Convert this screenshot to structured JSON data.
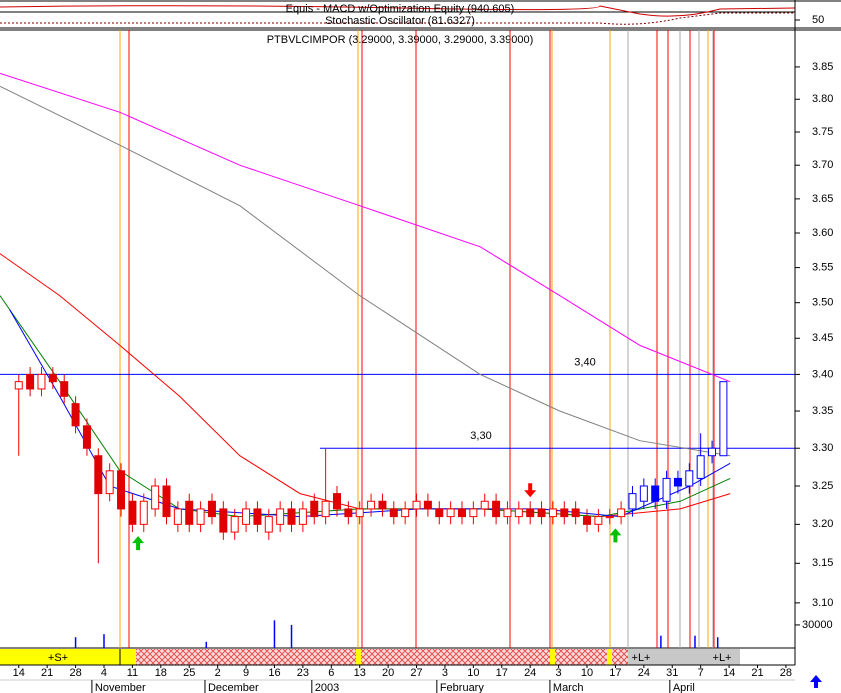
{
  "chart_data": {
    "type": "candlestick",
    "indicator": {
      "labels": [
        "Equis - MACD w/Optimization Equity (940.605)",
        "Stochastic Oscillator (81.6327)"
      ],
      "ylim": [
        0,
        140
      ],
      "yticks": [
        50
      ]
    },
    "title": "PTBVLCIMPOR (3.29000, 3.39000, 3.29000, 3.39000)",
    "log_scale": true,
    "grid": false,
    "xlim": [
      -3.3,
      136.6
    ],
    "ylim": [
      3.06,
      3.9
    ],
    "yticks": [
      {
        "value": 3.1,
        "label": "3.10"
      },
      3.15,
      {
        "value": 3.2,
        "label": "3.20"
      },
      3.25,
      {
        "value": 3.3,
        "label": "3.30"
      },
      3.35,
      {
        "value": 3.4,
        "label": "3.40"
      },
      3.45,
      {
        "value": 3.5,
        "label": "3.50"
      },
      3.55,
      {
        "value": 3.6,
        "label": "3.60"
      },
      3.65,
      {
        "value": 3.7,
        "label": "3.70"
      },
      3.75,
      {
        "value": 3.8,
        "label": "3.80"
      },
      3.85
    ],
    "xticks": [
      {
        "value": 0,
        "label": "14"
      },
      {
        "value": 5,
        "label": "21"
      },
      {
        "value": 10,
        "label": "28"
      },
      {
        "value": 15,
        "label": "4"
      },
      {
        "value": 20,
        "label": "11"
      },
      {
        "value": 25,
        "label": "18"
      },
      {
        "value": 30,
        "label": "25"
      },
      {
        "value": 35,
        "label": "2"
      },
      {
        "value": 40,
        "label": "9"
      },
      {
        "value": 45,
        "label": "16"
      },
      {
        "value": 50,
        "label": "23"
      },
      {
        "value": 55,
        "label": "6"
      },
      {
        "value": 60,
        "label": "13"
      },
      {
        "value": 65,
        "label": "20"
      },
      {
        "value": 70,
        "label": "27"
      },
      {
        "value": 75,
        "label": "3"
      },
      {
        "value": 80,
        "label": "10"
      },
      {
        "value": 85,
        "label": "17"
      },
      {
        "value": 90,
        "label": "24"
      },
      {
        "value": 95,
        "label": "3"
      },
      {
        "value": 100,
        "label": "10"
      },
      {
        "value": 105,
        "label": "17"
      },
      {
        "value": 110,
        "label": "24"
      },
      {
        "value": 115,
        "label": "31"
      },
      {
        "value": 120,
        "label": "7"
      },
      {
        "value": 125,
        "label": "14"
      },
      {
        "value": 130,
        "label": "21"
      },
      {
        "value": 135,
        "label": "28"
      }
    ],
    "month_labels": [
      {
        "value": 13.4,
        "label": "November"
      },
      {
        "value": 33.3,
        "label": "December"
      },
      {
        "value": 52.1,
        "label": "2003"
      },
      {
        "value": 74.1,
        "label": "February"
      },
      {
        "value": 94,
        "label": "March"
      },
      {
        "value": 115.1,
        "label": "April"
      }
    ],
    "candles": {
      "up_color": "#ff0000",
      "down_color": "#e00000",
      "highlight": {
        "from_x": 108,
        "color": "#0000ff"
      },
      "x": [
        0,
        2,
        4,
        6,
        8,
        10,
        12,
        14,
        16,
        18,
        20,
        22,
        24,
        26,
        28,
        30,
        32,
        34,
        36,
        38,
        40,
        42,
        44,
        46,
        48,
        50,
        52,
        54,
        56,
        58,
        60,
        62,
        64,
        66,
        68,
        70,
        72,
        74,
        76,
        78,
        80,
        82,
        84,
        86,
        88,
        90,
        92,
        94,
        96,
        98,
        100,
        102,
        104,
        106,
        108,
        110,
        112,
        114,
        116,
        118,
        120,
        122,
        124
      ],
      "open": [
        3.38,
        3.4,
        3.38,
        3.4,
        3.39,
        3.36,
        3.33,
        3.29,
        3.24,
        3.27,
        3.23,
        3.2,
        3.22,
        3.25,
        3.2,
        3.23,
        3.2,
        3.23,
        3.22,
        3.19,
        3.2,
        3.22,
        3.19,
        3.2,
        3.22,
        3.2,
        3.23,
        3.21,
        3.24,
        3.22,
        3.21,
        3.22,
        3.23,
        3.22,
        3.21,
        3.22,
        3.23,
        3.22,
        3.21,
        3.22,
        3.21,
        3.22,
        3.23,
        3.21,
        3.21,
        3.22,
        3.22,
        3.21,
        3.22,
        3.22,
        3.21,
        3.2,
        3.21,
        3.21,
        3.22,
        3.23,
        3.25,
        3.23,
        3.26,
        3.25,
        3.26,
        3.29,
        3.29
      ],
      "high": [
        3.4,
        3.41,
        3.41,
        3.41,
        3.4,
        3.37,
        3.34,
        3.3,
        3.28,
        3.28,
        3.24,
        3.24,
        3.26,
        3.26,
        3.23,
        3.24,
        3.23,
        3.24,
        3.23,
        3.22,
        3.23,
        3.23,
        3.22,
        3.23,
        3.23,
        3.23,
        3.24,
        3.3,
        3.25,
        3.23,
        3.23,
        3.24,
        3.24,
        3.23,
        3.23,
        3.24,
        3.24,
        3.23,
        3.23,
        3.23,
        3.23,
        3.24,
        3.24,
        3.23,
        3.23,
        3.23,
        3.23,
        3.23,
        3.23,
        3.23,
        3.22,
        3.22,
        3.22,
        3.23,
        3.25,
        3.26,
        3.26,
        3.27,
        3.27,
        3.28,
        3.32,
        3.31,
        3.39
      ],
      "low": [
        3.29,
        3.37,
        3.37,
        3.38,
        3.36,
        3.32,
        3.29,
        3.15,
        3.23,
        3.21,
        3.19,
        3.19,
        3.21,
        3.2,
        3.19,
        3.19,
        3.19,
        3.2,
        3.18,
        3.18,
        3.19,
        3.19,
        3.18,
        3.19,
        3.19,
        3.19,
        3.2,
        3.2,
        3.21,
        3.2,
        3.2,
        3.21,
        3.21,
        3.2,
        3.2,
        3.21,
        3.21,
        3.2,
        3.2,
        3.2,
        3.2,
        3.21,
        3.2,
        3.2,
        3.2,
        3.2,
        3.2,
        3.2,
        3.2,
        3.2,
        3.19,
        3.19,
        3.2,
        3.2,
        3.21,
        3.22,
        3.22,
        3.22,
        3.24,
        3.24,
        3.25,
        3.28,
        3.29
      ],
      "close": [
        3.39,
        3.38,
        3.4,
        3.39,
        3.37,
        3.33,
        3.3,
        3.24,
        3.27,
        3.22,
        3.2,
        3.23,
        3.25,
        3.21,
        3.22,
        3.2,
        3.22,
        3.21,
        3.19,
        3.21,
        3.22,
        3.2,
        3.21,
        3.22,
        3.2,
        3.22,
        3.21,
        3.23,
        3.22,
        3.21,
        3.22,
        3.23,
        3.22,
        3.21,
        3.22,
        3.23,
        3.22,
        3.21,
        3.22,
        3.21,
        3.22,
        3.23,
        3.21,
        3.22,
        3.22,
        3.21,
        3.21,
        3.22,
        3.21,
        3.21,
        3.2,
        3.21,
        3.21,
        3.22,
        3.24,
        3.25,
        3.23,
        3.26,
        3.25,
        3.27,
        3.29,
        3.3,
        3.39
      ]
    },
    "series": [
      {
        "color": "#ff00ff",
        "x": [
          -3.3,
          17.8,
          38.9,
          60,
          81.2,
          95.2,
          109.3,
          125.2
        ],
        "values": [
          3.84,
          3.78,
          3.7,
          3.64,
          3.58,
          3.51,
          3.44,
          3.39
        ]
      },
      {
        "color": "#808080",
        "x": [
          -3.3,
          17.8,
          38.9,
          60,
          81.2,
          95.2,
          109.3,
          125.2
        ],
        "values": [
          3.82,
          3.73,
          3.64,
          3.51,
          3.4,
          3.35,
          3.31,
          3.29
        ]
      },
      {
        "color": "#ff0000",
        "x": [
          -3.3,
          7.2,
          17.8,
          28.3,
          38.9,
          49.5,
          60,
          81.2,
          102.3,
          116.4,
          125.2
        ],
        "values": [
          3.57,
          3.51,
          3.44,
          3.37,
          3.29,
          3.24,
          3.22,
          3.22,
          3.21,
          3.22,
          3.24
        ]
      },
      {
        "color": "#008000",
        "x": [
          -3.3,
          7.2,
          17.8,
          28.3,
          38.9,
          60,
          81.2,
          102.3,
          116.4,
          125.2
        ],
        "values": [
          3.51,
          3.39,
          3.27,
          3.22,
          3.21,
          3.22,
          3.22,
          3.21,
          3.23,
          3.26
        ]
      },
      {
        "color": "#0000ff",
        "x": [
          -1.6,
          7.2,
          16,
          28.3,
          49.5,
          70.6,
          91.7,
          105.8,
          118.1,
          125.2
        ],
        "values": [
          3.49,
          3.37,
          3.25,
          3.22,
          3.21,
          3.22,
          3.22,
          3.21,
          3.25,
          3.28
        ]
      }
    ],
    "hlines": [
      {
        "value": 3.4,
        "label": "3,40",
        "from_x": -3.3,
        "color": "#0000ff"
      },
      {
        "value": 3.3,
        "label": "3,30",
        "from_x": 53,
        "color": "#0000ff"
      }
    ],
    "signals": [
      {
        "x": 21,
        "type": "buy"
      },
      {
        "x": 90,
        "type": "sell"
      },
      {
        "x": 105,
        "type": "buy"
      }
    ],
    "volume": {
      "color": "#0000ff",
      "ylim": [
        0,
        39000
      ],
      "yticks": [
        30000
      ],
      "x": [
        10,
        15,
        33,
        45,
        48,
        113,
        119,
        123
      ],
      "values": [
        14000,
        18000,
        8000,
        36000,
        30000,
        16000,
        16000,
        14000
      ]
    },
    "strip_labels": [
      "+S+",
      "+L+",
      "+L+"
    ]
  }
}
